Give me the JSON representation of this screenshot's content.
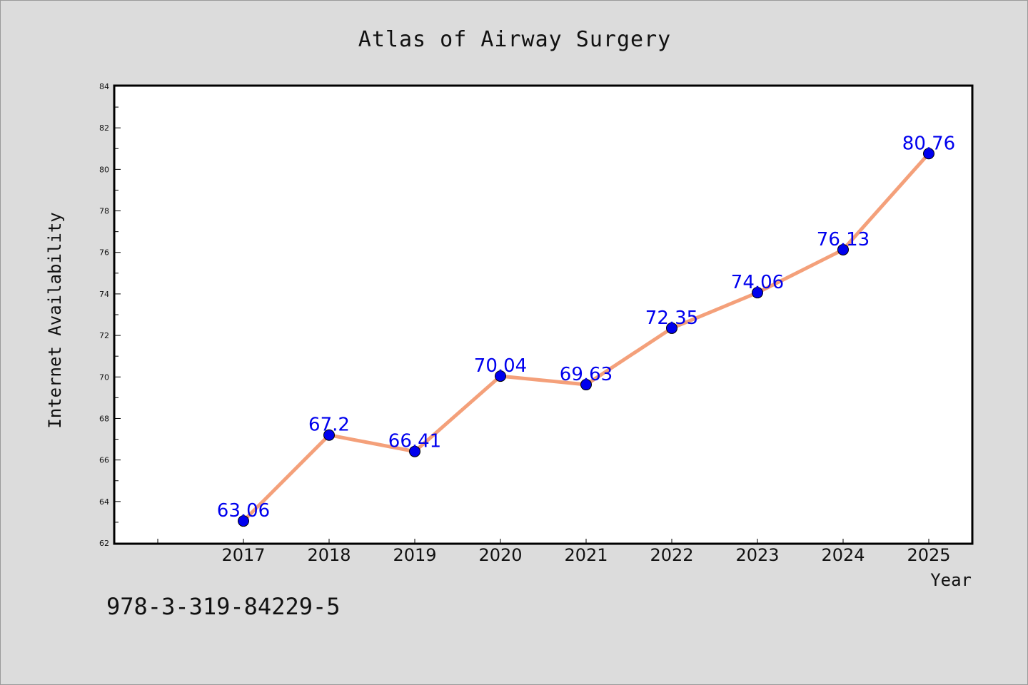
{
  "footer": {
    "isbn": "978-3-319-84229-5"
  },
  "chart_data": {
    "type": "line",
    "title": "Atlas of Airway Surgery",
    "xlabel": "Year",
    "ylabel": "Internet Availability",
    "categories": [
      "2017",
      "2018",
      "2019",
      "2020",
      "2021",
      "2022",
      "2023",
      "2024",
      "2025"
    ],
    "y_ticks": [
      "62",
      "64",
      "66",
      "68",
      "70",
      "72",
      "74",
      "76",
      "78",
      "80",
      "82",
      "84"
    ],
    "ylim": [
      62,
      84
    ],
    "grid": false,
    "legend": "none",
    "series": [
      {
        "values": [
          63.06,
          67.2,
          66.41,
          70.04,
          69.63,
          72.35,
          74.06,
          76.13,
          80.76
        ],
        "data_labels": [
          "63.06",
          "67.2",
          "66.41",
          "70.04",
          "69.63",
          "72.35",
          "74.06",
          "76.13",
          "80.76"
        ],
        "line_color": "#f4a07a",
        "marker_color": "#0000ee"
      }
    ],
    "colors": {
      "background": "#dcdcdc",
      "plot_background": "#ffffff",
      "label_color": "#0000ee"
    }
  }
}
